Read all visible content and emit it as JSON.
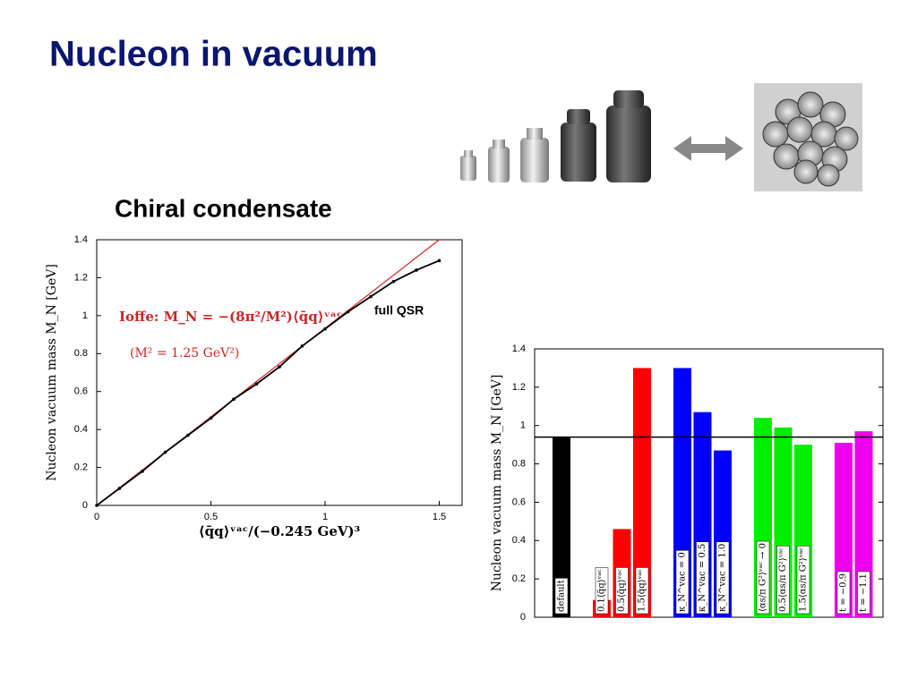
{
  "title": "Nucleon in vacuum",
  "subtitle": "Chiral condensate",
  "chart_data": [
    {
      "type": "line",
      "xlabel": "⟨q̄q⟩ᵛᵃᶜ/(−0.245 GeV)³",
      "ylabel": "Nucleon vacuum mass M_N [GeV]",
      "annotations": [
        "Ioffe: M_N = −(8π²/M²)⟨q̄q⟩ᵛᵃᶜ",
        "(M² = 1.25 GeV²)"
      ],
      "series": [
        {
          "name": "full QSR",
          "color": "#000000",
          "marker": true,
          "x": [
            0,
            0.1,
            0.2,
            0.3,
            0.4,
            0.5,
            0.6,
            0.7,
            0.8,
            0.9,
            1,
            1.1,
            1.2,
            1.3,
            1.4,
            1.5
          ],
          "values": [
            0,
            0.09,
            0.18,
            0.28,
            0.37,
            0.46,
            0.56,
            0.64,
            0.73,
            0.84,
            0.93,
            1.02,
            1.1,
            1.18,
            1.24,
            1.29
          ]
        },
        {
          "color": "#d62728",
          "x": [
            0,
            1.5
          ],
          "values": [
            0,
            1.4
          ]
        }
      ],
      "xlim": [
        0,
        1.6
      ],
      "ylim": [
        0,
        1.4
      ],
      "xticks": [
        0,
        0.5,
        1,
        1.5
      ],
      "yticks": [
        0,
        0.2,
        0.4,
        0.6,
        0.8,
        1,
        1.2,
        1.4
      ]
    },
    {
      "type": "bar",
      "ylabel": "Nucleon vacuum mass M_N [GeV]",
      "categories": [
        "default",
        "0.1⟨q̄q⟩ᵛᵃᶜ",
        "0.5⟨q̄q⟩ᵛᵃᶜ",
        "1.5⟨q̄q⟩ᵛᵃᶜ",
        "κ_N^vac = 0",
        "κ_N^vac = 0.5",
        "κ_N^vac = 1.0",
        "⟨αs/π G²⟩ᵛᵃᶜ → 0",
        "0.5⟨αs/π G²⟩ᵛᵃᶜ",
        "1.5⟨αs/π G²⟩ᵛᵃᶜ",
        "t = −0.9",
        "t = −1.1"
      ],
      "values": [
        0.94,
        0.09,
        0.46,
        1.3,
        1.3,
        1.07,
        0.87,
        1.04,
        0.99,
        0.9,
        0.91,
        0.97
      ],
      "colors": [
        "#000000",
        "#ff0000",
        "#ff0000",
        "#ff0000",
        "#0000ff",
        "#0000ff",
        "#0000ff",
        "#00ee00",
        "#00ee00",
        "#00ee00",
        "#ee00ee",
        "#ee00ee"
      ],
      "hline": 0.94,
      "ylim": [
        0,
        1.4
      ],
      "yticks": [
        0,
        0.2,
        0.4,
        0.6,
        0.8,
        1,
        1.2,
        1.4
      ]
    }
  ]
}
